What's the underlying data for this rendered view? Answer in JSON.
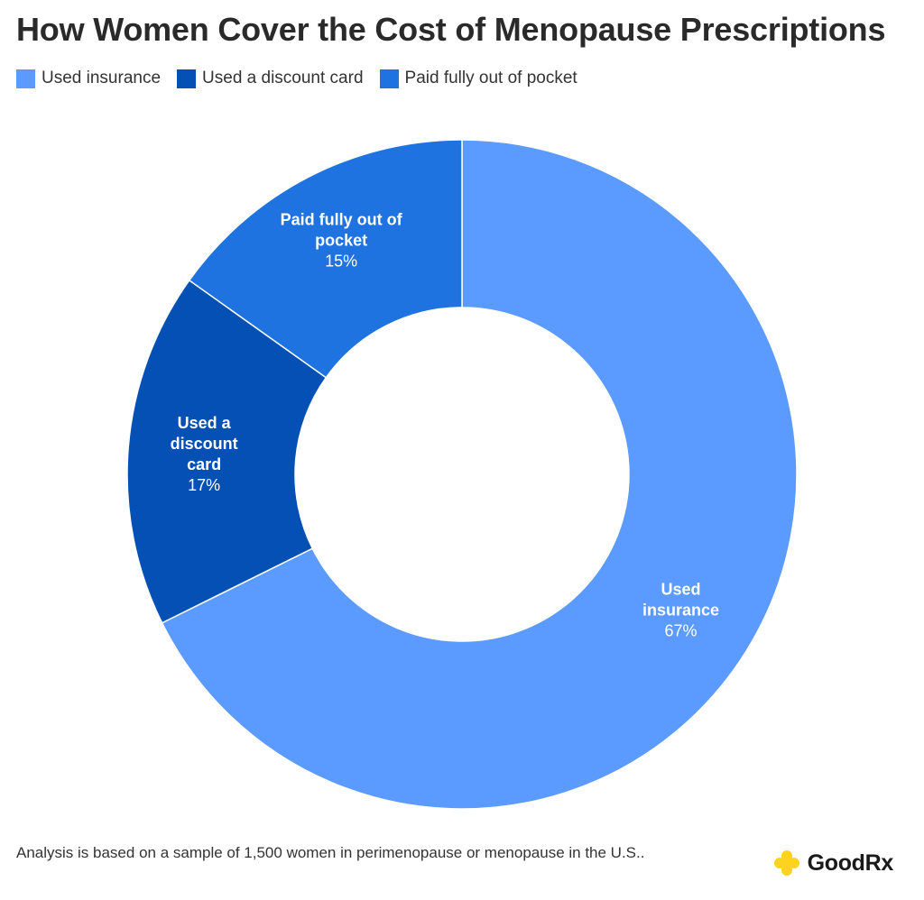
{
  "title": "How Women Cover the Cost of Menopause Prescriptions",
  "legend": [
    {
      "label": "Used insurance",
      "color": "#5b9bff"
    },
    {
      "label": "Used a discount card",
      "color": "#0450b4"
    },
    {
      "label": "Paid fully out of pocket",
      "color": "#1e73e0"
    }
  ],
  "chart_data": {
    "type": "pie",
    "variant": "donut",
    "title": "How Women Cover the Cost of Menopause Prescriptions",
    "series": [
      {
        "name": "Share of women",
        "slices": [
          {
            "label": "Used insurance",
            "label_lines": [
              "Used",
              "insurance"
            ],
            "value": 67,
            "value_label": "67%",
            "color": "#5b9bff"
          },
          {
            "label": "Used a discount card",
            "label_lines": [
              "Used a",
              "discount",
              "card"
            ],
            "value": 17,
            "value_label": "17%",
            "color": "#0450b4"
          },
          {
            "label": "Paid fully out of pocket",
            "label_lines": [
              "Paid fully out of",
              "pocket"
            ],
            "value": 15,
            "value_label": "15%",
            "color": "#1e73e0"
          }
        ]
      }
    ],
    "legend_position": "top-left",
    "start_angle": "12 o'clock",
    "direction": "clockwise"
  },
  "footnote": "Analysis is based on a sample of 1,500 women in perimenopause or menopause in the U.S..",
  "brand": {
    "name": "GoodRx",
    "icon": "plus-icon",
    "icon_color": "#fdd31f"
  }
}
